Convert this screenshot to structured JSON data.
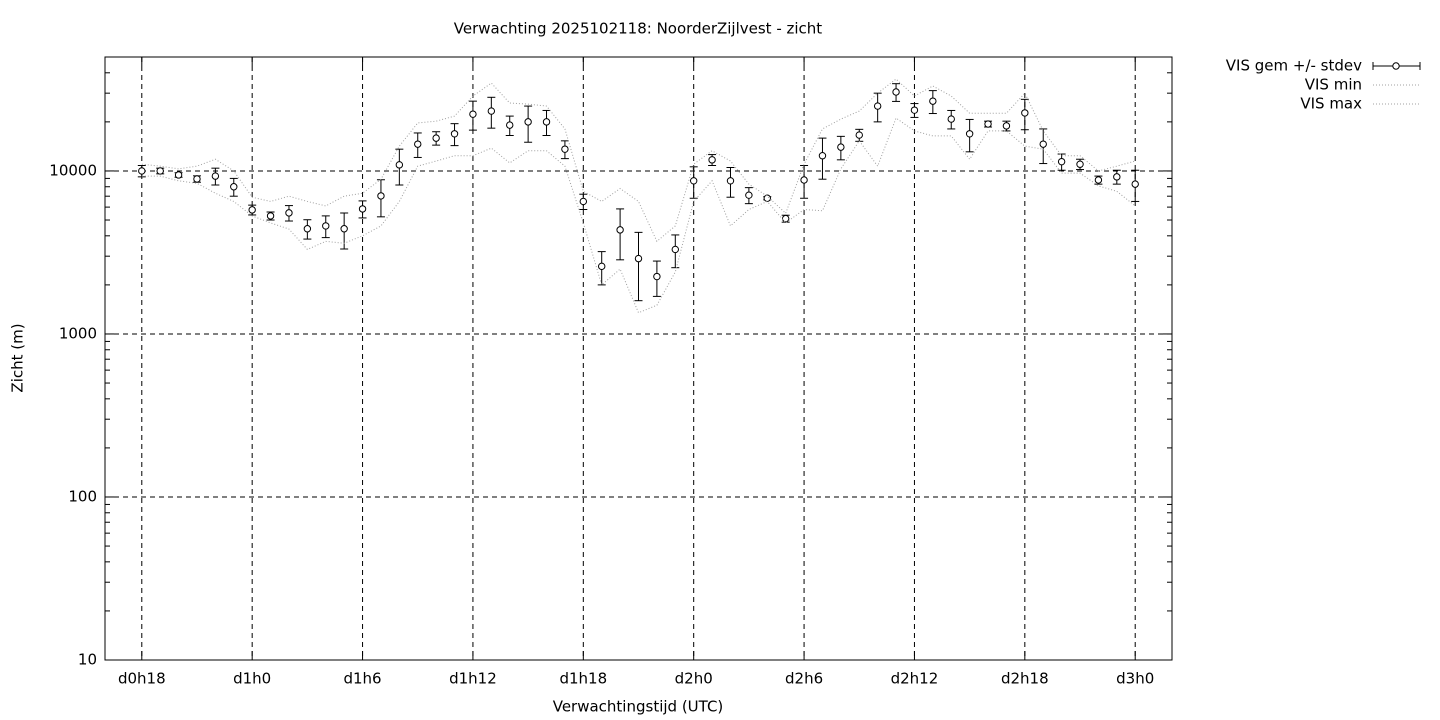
{
  "chart_data": {
    "type": "errorbar",
    "title": "Verwachting 2025102118: NoorderZijlvest - zicht",
    "x_label": "Verwachtingstijd (UTC)",
    "y_label": "Zicht (m)",
    "y_log": true,
    "grid": true,
    "legend": "outside-top-right",
    "xlim": [
      16,
      74
    ],
    "xticks": [
      {
        "value": 18,
        "label": "d0h18"
      },
      {
        "value": 24,
        "label": "d1h0"
      },
      {
        "value": 30,
        "label": "d1h6"
      },
      {
        "value": 36,
        "label": "d1h12"
      },
      {
        "value": 42,
        "label": "d1h18"
      },
      {
        "value": 48,
        "label": "d2h0"
      },
      {
        "value": 54,
        "label": "d2h6"
      },
      {
        "value": 60,
        "label": "d2h12"
      },
      {
        "value": 66,
        "label": "d2h18"
      },
      {
        "value": 72,
        "label": "d3h0"
      }
    ],
    "ylim": [
      10,
      50000
    ],
    "yticks": [
      10,
      100,
      1000,
      10000
    ],
    "x": [
      18,
      19,
      20,
      21,
      22,
      23,
      24,
      25,
      26,
      27,
      28,
      29,
      30,
      31,
      32,
      33,
      34,
      35,
      36,
      37,
      38,
      39,
      40,
      41,
      42,
      43,
      44,
      45,
      46,
      47,
      48,
      49,
      50,
      51,
      52,
      53,
      54,
      55,
      56,
      57,
      58,
      59,
      60,
      61,
      62,
      63,
      64,
      65,
      66,
      67,
      68,
      69,
      70,
      71,
      72
    ],
    "series": [
      {
        "name": "VIS gem +/- stdev",
        "color": "#000000",
        "values": [
          10000,
          10000,
          9450,
          8930,
          9300,
          8000,
          5770,
          5300,
          5530,
          4420,
          4600,
          4420,
          5850,
          7030,
          10900,
          14600,
          15900,
          16900,
          22300,
          23300,
          19100,
          20000,
          20000,
          13600,
          6500,
          2600,
          4350,
          2900,
          2250,
          3300,
          8700,
          11700,
          8700,
          7100,
          6800,
          5100,
          8800,
          12400,
          14000,
          16600,
          25000,
          30500,
          23600,
          26800,
          20800,
          16900,
          19400,
          18900,
          22700,
          14600,
          11400,
          11000,
          8800,
          9200,
          8300
        ],
        "errors": [
          800,
          400,
          300,
          400,
          1100,
          1000,
          400,
          300,
          600,
          600,
          700,
          1100,
          700,
          1800,
          2700,
          2500,
          1500,
          2600,
          4500,
          5000,
          2600,
          5000,
          3500,
          1700,
          700,
          600,
          1500,
          1300,
          550,
          750,
          1900,
          900,
          1800,
          800,
          150,
          250,
          2000,
          3500,
          2300,
          1400,
          5000,
          3800,
          2300,
          4300,
          2700,
          3800,
          800,
          1300,
          4800,
          3500,
          1300,
          800,
          500,
          900,
          1800
        ]
      },
      {
        "name": "VIS min",
        "color": "#a0a0a0",
        "values": [
          9300,
          9300,
          8700,
          8400,
          7300,
          6500,
          5300,
          4800,
          4400,
          3300,
          3700,
          3600,
          4000,
          4600,
          6500,
          10700,
          11500,
          12400,
          12400,
          13800,
          11200,
          13300,
          13300,
          10700,
          4800,
          2000,
          2500,
          1350,
          1500,
          2400,
          6500,
          8700,
          4600,
          5800,
          6500,
          4800,
          5800,
          5700,
          10300,
          15300,
          10700,
          21100,
          17600,
          16400,
          16400,
          11800,
          17600,
          17600,
          14200,
          13600,
          9700,
          9700,
          8100,
          7500,
          6100
        ]
      },
      {
        "name": "VIS max",
        "color": "#a0a0a0",
        "values": [
          11000,
          10700,
          10300,
          10700,
          11800,
          10000,
          6900,
          6500,
          7000,
          6500,
          6100,
          7000,
          7300,
          8900,
          14200,
          19700,
          20200,
          21700,
          28800,
          34600,
          26100,
          25700,
          25000,
          18100,
          7500,
          6500,
          7800,
          6500,
          3700,
          4600,
          11000,
          13300,
          11500,
          8300,
          7000,
          5500,
          11000,
          18100,
          20800,
          23300,
          30000,
          36600,
          28800,
          33200,
          28800,
          22600,
          22600,
          22600,
          30000,
          17600,
          12400,
          12400,
          10000,
          10700,
          11500
        ]
      }
    ]
  }
}
